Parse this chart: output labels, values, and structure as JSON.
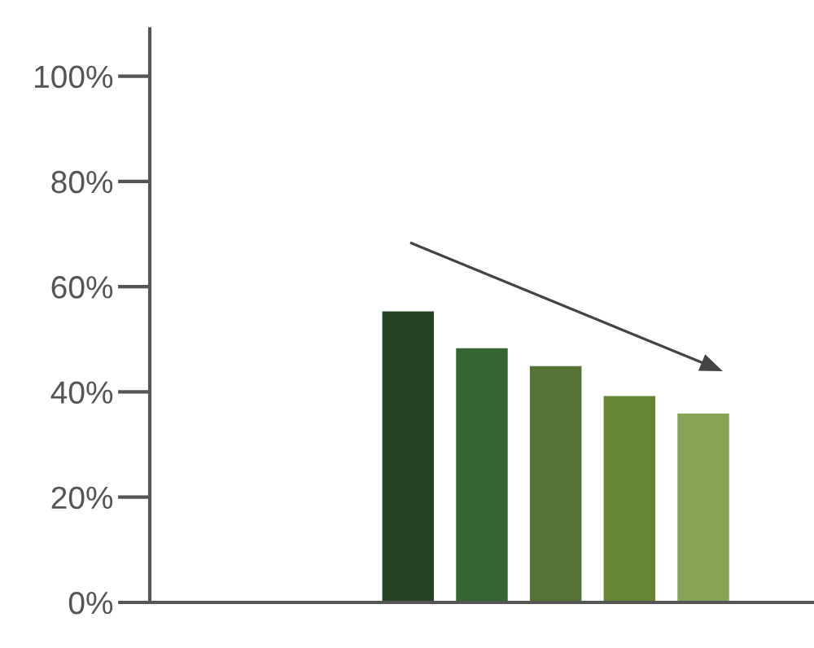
{
  "chart_data": {
    "type": "bar",
    "categories": [
      null,
      null,
      null,
      null,
      null,
      null,
      null,
      null,
      null
    ],
    "series": [
      {
        "colors": [
          "#264425",
          "#264425",
          "#264425",
          "#264425",
          "#336633",
          "#547334",
          "#668636",
          "#86a356",
          "#86a356"
        ],
        "values": [
          null,
          null,
          null,
          55.3,
          48.3,
          44.9,
          39.2,
          35.9,
          null
        ]
      }
    ],
    "ylim": [
      0,
      109
    ],
    "yticks": [
      {
        "value": 0,
        "label": "0%"
      },
      {
        "value": 20,
        "label": "20%"
      },
      {
        "value": 40,
        "label": "40%"
      },
      {
        "value": 60,
        "label": "60%"
      },
      {
        "value": 80,
        "label": "80%"
      },
      {
        "value": 100,
        "label": "100%"
      }
    ],
    "grid": false,
    "tick_labels": "y"
  }
}
